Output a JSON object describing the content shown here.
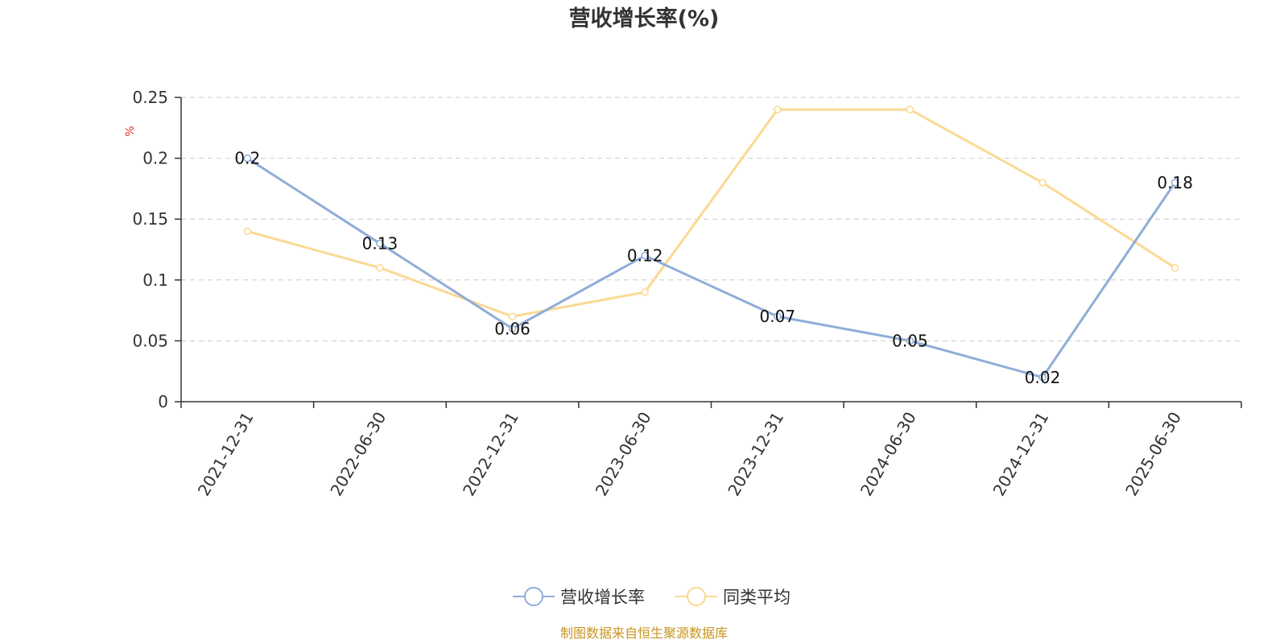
{
  "chart_data": {
    "type": "line",
    "title": "营收增长率(%)",
    "ylabel": "%",
    "categories": [
      "2021-12-31",
      "2022-06-30",
      "2022-12-31",
      "2023-06-30",
      "2023-12-31",
      "2024-06-30",
      "2024-12-31",
      "2025-06-30"
    ],
    "series": [
      {
        "name": "营收增长率",
        "values": [
          0.2,
          0.13,
          0.06,
          0.12,
          0.07,
          0.05,
          0.02,
          0.18
        ],
        "color": "#8fadd8",
        "labels": [
          "0.2",
          "0.13",
          "0.06",
          "0.12",
          "0.07",
          "0.05",
          "0.02",
          "0.18"
        ]
      },
      {
        "name": "同类平均",
        "values": [
          0.14,
          0.11,
          0.07,
          0.09,
          0.24,
          0.24,
          0.18,
          0.11
        ],
        "color": "#fbd993"
      }
    ],
    "ylim": [
      0,
      0.25
    ],
    "yticks": [
      "0",
      "0.05",
      "0.1",
      "0.15",
      "0.2",
      "0.25"
    ],
    "grid": true,
    "legend_position": "bottom"
  },
  "source_note": "制图数据来自恒生聚源数据库",
  "colors": {
    "unit": "#e03030",
    "source": "#c8941e",
    "axis": "#333333",
    "grid": "#cccccc"
  }
}
